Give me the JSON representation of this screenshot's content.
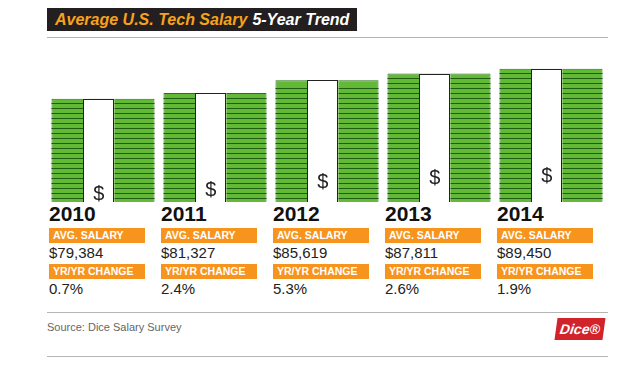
{
  "chart_data": {
    "type": "bar",
    "title": "Average U.S. Tech Salary",
    "subtitle": "5-Year Trend",
    "categories": [
      "2010",
      "2011",
      "2012",
      "2013",
      "2014"
    ],
    "values": [
      79384,
      81327,
      85619,
      87811,
      89450
    ],
    "value_labels": [
      "$79,384",
      "$81,327",
      "$85,619",
      "$87,811",
      "$89,450"
    ],
    "data_labels": true,
    "color": "#62b936",
    "ylim": [
      45000,
      95000
    ],
    "tick_labels": false,
    "grid": false,
    "annotation": "$",
    "value_heading": "AVG. SALARY",
    "change_heading": "YR/YR CHANGE",
    "changes": [
      0.7,
      2.4,
      5.3,
      2.6,
      1.9
    ],
    "change_labels": [
      "0.7%",
      "2.4%",
      "5.3%",
      "2.6%",
      "1.9%"
    ],
    "source": "Source: Dice Salary Survey",
    "logo": "Dice®"
  }
}
